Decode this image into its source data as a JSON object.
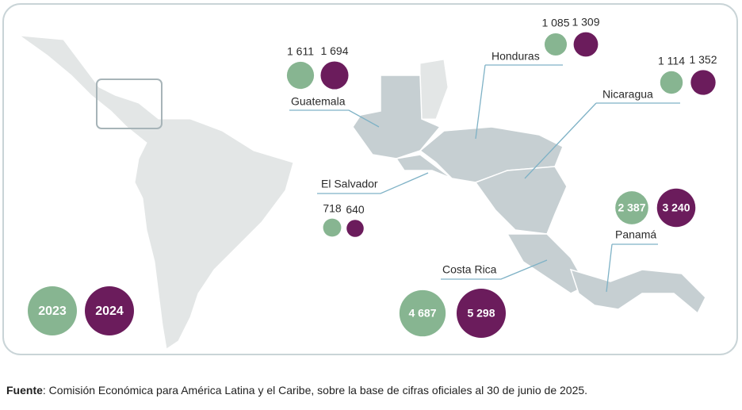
{
  "legend": {
    "years": [
      "2023",
      "2024"
    ],
    "colors": [
      "#87b591",
      "#6b1c5c"
    ]
  },
  "countries": [
    {
      "name": "Guatemala",
      "values": [
        1611,
        1694
      ],
      "value_labels": [
        "1 611",
        "1 694"
      ]
    },
    {
      "name": "Honduras",
      "values": [
        1085,
        1309
      ],
      "value_labels": [
        "1 085",
        "1 309"
      ]
    },
    {
      "name": "Nicaragua",
      "values": [
        1114,
        1352
      ],
      "value_labels": [
        "1 114",
        "1 352"
      ]
    },
    {
      "name": "El Salvador",
      "values": [
        718,
        640
      ],
      "value_labels": [
        "718",
        "640"
      ]
    },
    {
      "name": "Costa Rica",
      "values": [
        4687,
        5298
      ],
      "value_labels": [
        "4 687",
        "5 298"
      ]
    },
    {
      "name": "Panamá",
      "values": [
        2387,
        3240
      ],
      "value_labels": [
        "2 387",
        "3 240"
      ]
    }
  ],
  "source": {
    "label": "Fuente",
    "text": ":  Comisión Económica para América Latina y el Caribe, sobre la base de cifras oficiales al 30 de junio de 2025."
  }
}
